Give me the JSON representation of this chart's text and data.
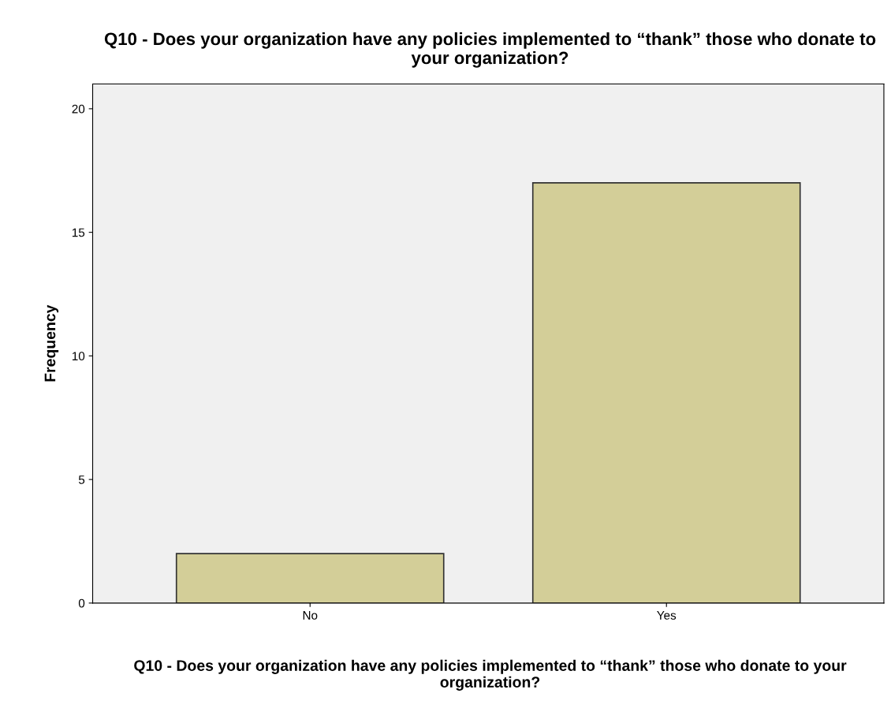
{
  "chart_data": {
    "type": "bar",
    "title": "Q10 - Does your organization have any policies implemented to “thank” those who donate to your organization?",
    "xlabel": "Q10 - Does your organization have any policies implemented to “thank” those who donate to your organization?",
    "ylabel": "Frequency",
    "categories": [
      "No",
      "Yes"
    ],
    "values": [
      2,
      17
    ],
    "color": "#d3ce98",
    "ylim": [
      0,
      21
    ],
    "yticks": [
      0,
      5,
      10,
      15,
      20
    ],
    "grid": false,
    "legend": false
  }
}
